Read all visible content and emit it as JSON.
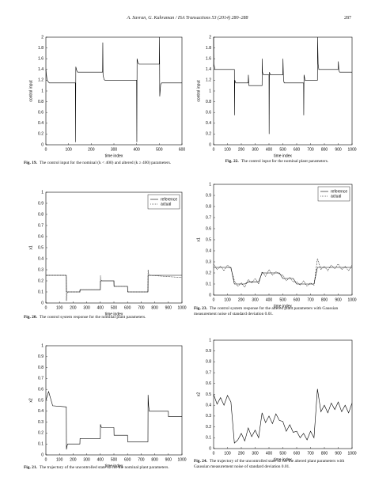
{
  "header": {
    "running_title": "A. Savran, G. Kahraman / ISA Transactions 53 (2014) 280–288",
    "page_number": "287"
  },
  "chart_data": [
    {
      "type": "line",
      "caption": {
        "label": "Fig. 19.",
        "text": "The control input for the nominal (k < 400) and altered (k ≥ 400) parameters."
      },
      "xlabel": "time index",
      "ylabel": "control input",
      "x": [
        0,
        5,
        15,
        130,
        131,
        132,
        136,
        140,
        250,
        251,
        252,
        256,
        260,
        400,
        401,
        402,
        406,
        410,
        500,
        501,
        502,
        506,
        510,
        600
      ],
      "series": [
        {
          "name": "control input",
          "color": "#000000",
          "style": "solid",
          "values": [
            1.4,
            1.2,
            1.15,
            1.15,
            0.05,
            1.45,
            1.38,
            1.35,
            1.35,
            1.9,
            1.3,
            1.22,
            1.2,
            1.2,
            0.05,
            1.6,
            1.52,
            1.5,
            1.5,
            2.0,
            0.9,
            1.12,
            1.15,
            1.15
          ]
        }
      ],
      "xlim": [
        0,
        600
      ],
      "xticks": [
        0,
        100,
        200,
        300,
        400,
        500,
        600
      ],
      "ylim": [
        0,
        2
      ],
      "yticks": [
        0,
        0.2,
        0.4,
        0.6,
        0.8,
        1,
        1.2,
        1.4,
        1.6,
        1.8,
        2
      ],
      "legend": false
    },
    {
      "type": "line",
      "caption": {
        "label": "Fig. 20.",
        "text": "The control system response for the nominal plant parameters."
      },
      "xlabel": "time index",
      "ylabel": "x1",
      "x": [
        0,
        150,
        151,
        153,
        160,
        250,
        251,
        255,
        400,
        401,
        403,
        410,
        500,
        501,
        600,
        601,
        750,
        751,
        753,
        760,
        1000
      ],
      "series": [
        {
          "name": "reference",
          "color": "#000000",
          "style": "solid",
          "values": [
            0.25,
            0.25,
            0.1,
            0.1,
            0.1,
            0.1,
            0.12,
            0.12,
            0.12,
            0.2,
            0.2,
            0.2,
            0.2,
            0.15,
            0.15,
            0.1,
            0.1,
            0.25,
            0.25,
            0.25,
            0.25
          ]
        },
        {
          "name": "actual",
          "color": "#000000",
          "style": "dotted",
          "values": [
            0.25,
            0.25,
            0.02,
            0.08,
            0.1,
            0.1,
            0.12,
            0.12,
            0.12,
            0.25,
            0.21,
            0.2,
            0.2,
            0.15,
            0.15,
            0.1,
            0.1,
            0.3,
            0.27,
            0.25,
            0.23
          ]
        }
      ],
      "xlim": [
        0,
        1000
      ],
      "xticks": [
        0,
        100,
        200,
        300,
        400,
        500,
        600,
        700,
        800,
        900,
        1000
      ],
      "ylim": [
        0,
        1
      ],
      "yticks": [
        0,
        0.1,
        0.2,
        0.3,
        0.4,
        0.5,
        0.6,
        0.7,
        0.8,
        0.9,
        1
      ],
      "legend": "upper right"
    },
    {
      "type": "line",
      "caption": {
        "label": "Fig. 21.",
        "text": "The trajectory of the uncontrolled state x2 for the nominal plant parameters."
      },
      "xlabel": "time index",
      "ylabel": "x2",
      "x": [
        0,
        20,
        50,
        150,
        151,
        155,
        160,
        250,
        251,
        400,
        401,
        405,
        410,
        500,
        501,
        600,
        601,
        750,
        751,
        755,
        760,
        900,
        901,
        1000
      ],
      "series": [
        {
          "name": "x2",
          "color": "#000000",
          "style": "solid",
          "values": [
            0.5,
            0.58,
            0.45,
            0.44,
            0.05,
            0.08,
            0.1,
            0.1,
            0.15,
            0.15,
            0.28,
            0.26,
            0.25,
            0.25,
            0.18,
            0.18,
            0.12,
            0.12,
            0.55,
            0.45,
            0.4,
            0.4,
            0.35,
            0.35
          ]
        }
      ],
      "xlim": [
        0,
        1000
      ],
      "xticks": [
        0,
        100,
        200,
        300,
        400,
        500,
        600,
        700,
        800,
        900,
        1000
      ],
      "ylim": [
        0,
        1
      ],
      "yticks": [
        0,
        0.1,
        0.2,
        0.3,
        0.4,
        0.5,
        0.6,
        0.7,
        0.8,
        0.9,
        1
      ],
      "legend": false
    },
    {
      "type": "line",
      "caption": {
        "label": "Fig. 22.",
        "text": "The control input for the nominal plant parameters."
      },
      "xlabel": "time index",
      "ylabel": "control input",
      "x": [
        0,
        2,
        10,
        150,
        151,
        153,
        160,
        250,
        251,
        255,
        350,
        351,
        353,
        360,
        400,
        401,
        403,
        410,
        500,
        501,
        505,
        510,
        650,
        651,
        653,
        660,
        750,
        751,
        755,
        760,
        900,
        901,
        905,
        910,
        1000
      ],
      "series": [
        {
          "name": "control input",
          "color": "#000000",
          "style": "solid",
          "values": [
            2.0,
            1.5,
            1.4,
            1.4,
            0.55,
            1.2,
            1.15,
            1.15,
            1.3,
            1.1,
            1.1,
            1.6,
            1.35,
            1.3,
            1.3,
            0.2,
            1.35,
            1.3,
            1.3,
            1.6,
            1.2,
            1.15,
            1.15,
            0.55,
            1.3,
            1.2,
            1.2,
            2.0,
            1.5,
            1.4,
            1.4,
            1.55,
            1.38,
            1.35,
            1.35
          ]
        }
      ],
      "xlim": [
        0,
        1000
      ],
      "xticks": [
        0,
        100,
        200,
        300,
        400,
        500,
        600,
        700,
        800,
        900,
        1000
      ],
      "ylim": [
        0,
        2
      ],
      "yticks": [
        0,
        0.2,
        0.4,
        0.6,
        0.8,
        1,
        1.2,
        1.4,
        1.6,
        1.8,
        2
      ],
      "legend": false
    },
    {
      "type": "line",
      "caption": {
        "label": "Fig. 23.",
        "text": "The control system response for the altered plant parameters with Gaussian measurement noise of standard deviation 0.01."
      },
      "xlabel": "time index",
      "ylabel": "x1",
      "x": [
        0,
        25,
        50,
        75,
        100,
        125,
        150,
        175,
        200,
        225,
        250,
        275,
        300,
        325,
        350,
        375,
        400,
        425,
        450,
        475,
        500,
        525,
        550,
        575,
        600,
        625,
        650,
        675,
        700,
        725,
        750,
        775,
        800,
        825,
        850,
        875,
        900,
        925,
        950,
        975,
        1000
      ],
      "series": [
        {
          "name": "reference",
          "color": "#000000",
          "style": "solid",
          "values": [
            0.25,
            0.25,
            0.25,
            0.25,
            0.25,
            0.25,
            0.1,
            0.1,
            0.1,
            0.1,
            0.12,
            0.12,
            0.12,
            0.12,
            0.2,
            0.2,
            0.2,
            0.2,
            0.2,
            0.2,
            0.15,
            0.15,
            0.15,
            0.15,
            0.1,
            0.1,
            0.1,
            0.1,
            0.1,
            0.1,
            0.25,
            0.25,
            0.25,
            0.25,
            0.25,
            0.25,
            0.25,
            0.25,
            0.25,
            0.25,
            0.25
          ]
        },
        {
          "name": "actual",
          "color": "#000000",
          "style": "dotted",
          "values": [
            0.28,
            0.23,
            0.26,
            0.22,
            0.27,
            0.24,
            0.13,
            0.08,
            0.11,
            0.07,
            0.14,
            0.11,
            0.15,
            0.1,
            0.21,
            0.17,
            0.23,
            0.18,
            0.21,
            0.19,
            0.18,
            0.13,
            0.16,
            0.12,
            0.12,
            0.09,
            0.13,
            0.08,
            0.11,
            0.09,
            0.33,
            0.23,
            0.26,
            0.22,
            0.27,
            0.24,
            0.28,
            0.23,
            0.26,
            0.22,
            0.27
          ]
        }
      ],
      "xlim": [
        0,
        1000
      ],
      "xticks": [
        0,
        100,
        200,
        300,
        400,
        500,
        600,
        700,
        800,
        900,
        1000
      ],
      "ylim": [
        0,
        1
      ],
      "yticks": [
        0,
        0.1,
        0.2,
        0.3,
        0.4,
        0.5,
        0.6,
        0.7,
        0.8,
        0.9,
        1
      ],
      "legend": "upper right"
    },
    {
      "type": "line",
      "caption": {
        "label": "Fig. 24.",
        "text": "The trajectory of the uncontrolled state x2 for the altered plant parameters with Gaussian measurement noise of standard deviation 0.01."
      },
      "xlabel": "time index",
      "ylabel": "x2",
      "x": [
        0,
        25,
        50,
        75,
        100,
        125,
        150,
        175,
        200,
        225,
        250,
        275,
        300,
        325,
        350,
        375,
        400,
        425,
        450,
        475,
        500,
        525,
        550,
        575,
        600,
        625,
        650,
        675,
        700,
        725,
        750,
        775,
        800,
        825,
        850,
        875,
        900,
        925,
        950,
        975,
        1000
      ],
      "series": [
        {
          "name": "x2",
          "color": "#000000",
          "style": "solid",
          "values": [
            0.5,
            0.41,
            0.47,
            0.4,
            0.49,
            0.43,
            0.05,
            0.08,
            0.14,
            0.07,
            0.19,
            0.11,
            0.17,
            0.1,
            0.33,
            0.24,
            0.3,
            0.23,
            0.32,
            0.26,
            0.25,
            0.16,
            0.22,
            0.15,
            0.16,
            0.1,
            0.14,
            0.08,
            0.16,
            0.1,
            0.55,
            0.34,
            0.4,
            0.33,
            0.42,
            0.36,
            0.43,
            0.34,
            0.4,
            0.33,
            0.42
          ]
        }
      ],
      "xlim": [
        0,
        1000
      ],
      "xticks": [
        0,
        100,
        200,
        300,
        400,
        500,
        600,
        700,
        800,
        900,
        1000
      ],
      "ylim": [
        0,
        1
      ],
      "yticks": [
        0,
        0.1,
        0.2,
        0.3,
        0.4,
        0.5,
        0.6,
        0.7,
        0.8,
        0.9,
        1
      ],
      "legend": false
    }
  ]
}
